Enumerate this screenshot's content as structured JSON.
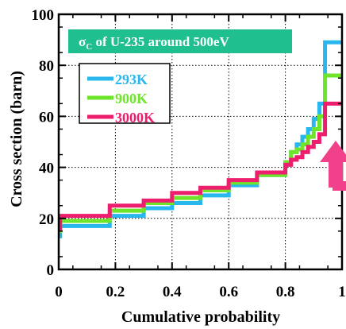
{
  "chart_data": {
    "type": "line",
    "title_main": "σ",
    "title_sub": "C",
    "title_rest": " of U-235 around 500eV",
    "title_bg": "#1fbf8f",
    "xlabel": "Cumulative probability",
    "ylabel": "Cross section (barn)",
    "xlim": [
      0,
      1
    ],
    "ylim": [
      0,
      100
    ],
    "xticks": [
      "0",
      "0.2",
      "0.4",
      "0.6",
      "0.8",
      "1"
    ],
    "yticks": [
      "0",
      "20",
      "40",
      "60",
      "80",
      "100"
    ],
    "grid": true,
    "legend_position": "top-left",
    "annotation": "upward-arrow",
    "annotation_color": "#f0418a",
    "series": [
      {
        "name": "293K",
        "color": "#2ab7ee",
        "x": [
          0,
          0.005,
          0.18,
          0.3,
          0.4,
          0.5,
          0.6,
          0.7,
          0.8,
          0.82,
          0.84,
          0.86,
          0.88,
          0.9,
          0.92,
          0.94,
          1.0
        ],
        "y": [
          13,
          17,
          21,
          24,
          26,
          29,
          33,
          37,
          42,
          46,
          49,
          52,
          55,
          59,
          65,
          89,
          89
        ]
      },
      {
        "name": "900K",
        "color": "#6ee52a",
        "x": [
          0,
          0.005,
          0.18,
          0.3,
          0.4,
          0.5,
          0.6,
          0.7,
          0.8,
          0.82,
          0.84,
          0.86,
          0.88,
          0.9,
          0.92,
          0.94,
          1.0
        ],
        "y": [
          15,
          19,
          23,
          26,
          28,
          31,
          34,
          37,
          42,
          46,
          47,
          49,
          52,
          55,
          60,
          76,
          76
        ]
      },
      {
        "name": "3000K",
        "color": "#ee1e6e",
        "x": [
          0,
          0.005,
          0.18,
          0.3,
          0.4,
          0.5,
          0.6,
          0.7,
          0.8,
          0.82,
          0.84,
          0.86,
          0.88,
          0.9,
          0.92,
          0.94,
          1.0
        ],
        "y": [
          16,
          21,
          25,
          27,
          30,
          32,
          35,
          38,
          41,
          43,
          44,
          46,
          48,
          50,
          53,
          65,
          65
        ]
      }
    ]
  }
}
